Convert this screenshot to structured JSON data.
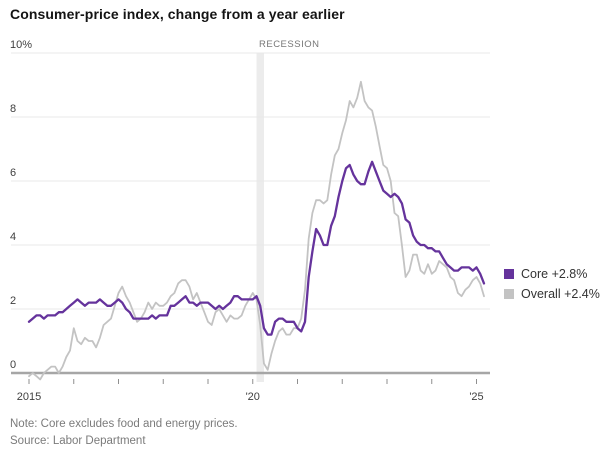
{
  "header": {
    "title": "Consumer-price index, change from a year earlier"
  },
  "legend": {
    "items": [
      {
        "name": "core",
        "label": "Core +2.8%",
        "color": "#65339c"
      },
      {
        "name": "overall",
        "label": "Overall +2.4%",
        "color": "#c3c3c3"
      }
    ]
  },
  "footer": {
    "note": "Note: Core excludes food and energy prices.",
    "source": "Source: Labor Department"
  },
  "chart_data": {
    "type": "line",
    "title": "Consumer-price index, change from a year earlier",
    "xlabel": "",
    "ylabel": "",
    "x_start": "2015-01",
    "x_end": "2025-03",
    "x_tick_interval_years": 1,
    "x_tick_labels": [
      "2015",
      "",
      "",
      "",
      "",
      "'20",
      "",
      "",
      "",
      "",
      "'25"
    ],
    "y_ticks": [
      {
        "value": 10,
        "label": "10%"
      },
      {
        "value": 8,
        "label": "8"
      },
      {
        "value": 6,
        "label": "6"
      },
      {
        "value": 4,
        "label": "4"
      },
      {
        "value": 2,
        "label": "2"
      },
      {
        "value": 0,
        "label": "0"
      }
    ],
    "ylim": [
      -0.5,
      10
    ],
    "grid": true,
    "legend_position": "right",
    "recession": {
      "label": "RECESSION",
      "start": "2020-02",
      "end": "2020-04",
      "band_color": "#ececec",
      "label_color": "#777777"
    },
    "colors": {
      "grid": "#e9e9e9",
      "zero_axis": "#a6a6a6",
      "tick": "#8f8f8f",
      "axis_text": "#3f3f3f"
    },
    "series": [
      {
        "name": "Overall",
        "color": "#c3c3c3",
        "latest_label": "Overall +2.4%",
        "values": [
          -0.1,
          0.0,
          -0.1,
          -0.2,
          0.0,
          0.1,
          0.2,
          0.2,
          0.0,
          0.2,
          0.5,
          0.7,
          1.4,
          1.0,
          0.9,
          1.1,
          1.0,
          1.0,
          0.8,
          1.1,
          1.5,
          1.6,
          1.7,
          2.1,
          2.5,
          2.7,
          2.4,
          2.2,
          1.9,
          1.6,
          1.7,
          1.9,
          2.2,
          2.0,
          2.2,
          2.1,
          2.1,
          2.2,
          2.4,
          2.5,
          2.8,
          2.9,
          2.9,
          2.7,
          2.3,
          2.5,
          2.2,
          1.9,
          1.6,
          1.5,
          1.9,
          2.0,
          1.8,
          1.6,
          1.8,
          1.7,
          1.7,
          1.8,
          2.1,
          2.3,
          2.5,
          2.3,
          1.5,
          0.3,
          0.1,
          0.6,
          1.0,
          1.3,
          1.4,
          1.2,
          1.2,
          1.4,
          1.4,
          1.7,
          2.6,
          4.2,
          5.0,
          5.4,
          5.4,
          5.3,
          5.4,
          6.2,
          6.8,
          7.0,
          7.5,
          7.9,
          8.5,
          8.3,
          8.6,
          9.1,
          8.5,
          8.3,
          8.2,
          7.7,
          7.1,
          6.5,
          6.4,
          6.0,
          5.0,
          4.9,
          4.0,
          3.0,
          3.2,
          3.7,
          3.7,
          3.2,
          3.1,
          3.4,
          3.1,
          3.2,
          3.5,
          3.4,
          3.3,
          3.0,
          2.9,
          2.5,
          2.4,
          2.6,
          2.7,
          2.9,
          3.0,
          2.8,
          2.4
        ]
      },
      {
        "name": "Core",
        "color": "#65339c",
        "latest_label": "Core +2.8%",
        "values": [
          1.6,
          1.7,
          1.8,
          1.8,
          1.7,
          1.8,
          1.8,
          1.8,
          1.9,
          1.9,
          2.0,
          2.1,
          2.2,
          2.3,
          2.2,
          2.1,
          2.2,
          2.2,
          2.2,
          2.3,
          2.2,
          2.1,
          2.1,
          2.2,
          2.3,
          2.2,
          2.0,
          1.9,
          1.7,
          1.7,
          1.7,
          1.7,
          1.7,
          1.8,
          1.7,
          1.8,
          1.8,
          1.8,
          2.1,
          2.1,
          2.2,
          2.3,
          2.4,
          2.2,
          2.2,
          2.1,
          2.2,
          2.2,
          2.2,
          2.1,
          2.0,
          2.1,
          2.0,
          2.1,
          2.2,
          2.4,
          2.4,
          2.3,
          2.3,
          2.3,
          2.3,
          2.4,
          2.1,
          1.4,
          1.2,
          1.2,
          1.6,
          1.7,
          1.7,
          1.6,
          1.6,
          1.6,
          1.4,
          1.3,
          1.6,
          3.0,
          3.8,
          4.5,
          4.3,
          4.0,
          4.0,
          4.6,
          4.9,
          5.5,
          6.0,
          6.4,
          6.5,
          6.2,
          6.0,
          5.9,
          5.9,
          6.3,
          6.6,
          6.3,
          6.0,
          5.7,
          5.6,
          5.5,
          5.6,
          5.5,
          5.3,
          4.8,
          4.7,
          4.3,
          4.1,
          4.0,
          4.0,
          3.9,
          3.9,
          3.8,
          3.8,
          3.6,
          3.4,
          3.3,
          3.2,
          3.2,
          3.3,
          3.3,
          3.3,
          3.2,
          3.3,
          3.1,
          2.8
        ]
      }
    ]
  }
}
